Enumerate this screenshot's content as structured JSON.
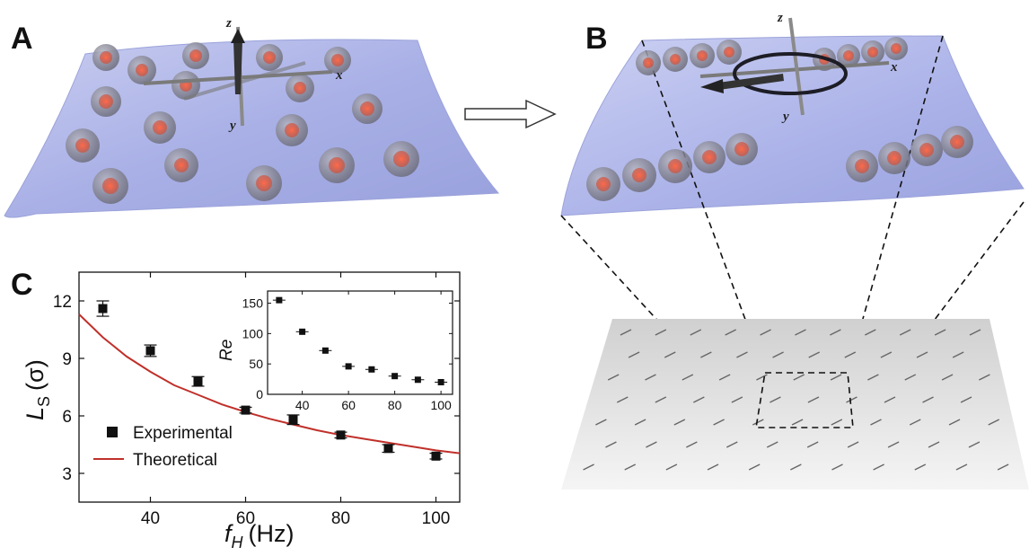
{
  "panels": {
    "a": {
      "label": "A"
    },
    "b": {
      "label": "B"
    },
    "c": {
      "label": "C"
    }
  },
  "axes3d": {
    "x": "x",
    "y": "y",
    "z": "z"
  },
  "chart_data": [
    {
      "type": "scatter",
      "panel": "C",
      "xlabel_main": "f",
      "xlabel_sub": "H",
      "xlabel_unit": "(Hz)",
      "ylabel_main": "L",
      "ylabel_sub": "S",
      "ylabel_unit": "(σ)",
      "xlim": [
        25,
        105
      ],
      "ylim": [
        1.5,
        13.5
      ],
      "xticks": [
        40,
        60,
        80,
        100
      ],
      "yticks": [
        3,
        6,
        9,
        12
      ],
      "legend_position": "lower-left",
      "series": [
        {
          "name": "Experimental",
          "marker": "square",
          "color": "#111111",
          "x": [
            30,
            40,
            50,
            60,
            70,
            80,
            90,
            100
          ],
          "y": [
            11.6,
            9.4,
            7.8,
            6.3,
            5.8,
            5.0,
            4.3,
            3.9
          ],
          "error": [
            0.4,
            0.3,
            0.25,
            0.15,
            0.25,
            0.15,
            0.2,
            0.15
          ]
        },
        {
          "name": "Theoretical",
          "type": "line",
          "color": "#c0302a",
          "x": [
            25,
            30,
            35,
            40,
            45,
            50,
            55,
            60,
            65,
            70,
            75,
            80,
            85,
            90,
            95,
            100,
            105
          ],
          "y": [
            11.3,
            10.1,
            9.1,
            8.3,
            7.6,
            7.1,
            6.6,
            6.2,
            5.85,
            5.55,
            5.25,
            5.0,
            4.8,
            4.6,
            4.4,
            4.2,
            4.05
          ]
        }
      ]
    },
    {
      "type": "scatter",
      "panel": "C-inset",
      "ylabel": "Re",
      "xlim": [
        25,
        105
      ],
      "ylim": [
        0,
        170
      ],
      "xticks": [
        40,
        60,
        80,
        100
      ],
      "yticks": [
        0,
        50,
        100,
        150
      ],
      "series": [
        {
          "marker": "square",
          "color": "#111111",
          "x": [
            30,
            40,
            50,
            60,
            70,
            80,
            90,
            100
          ],
          "y": [
            155,
            103,
            72,
            46,
            41,
            30,
            24,
            20
          ],
          "error": [
            4,
            3,
            3,
            2,
            2,
            2,
            2,
            2
          ]
        }
      ]
    }
  ]
}
